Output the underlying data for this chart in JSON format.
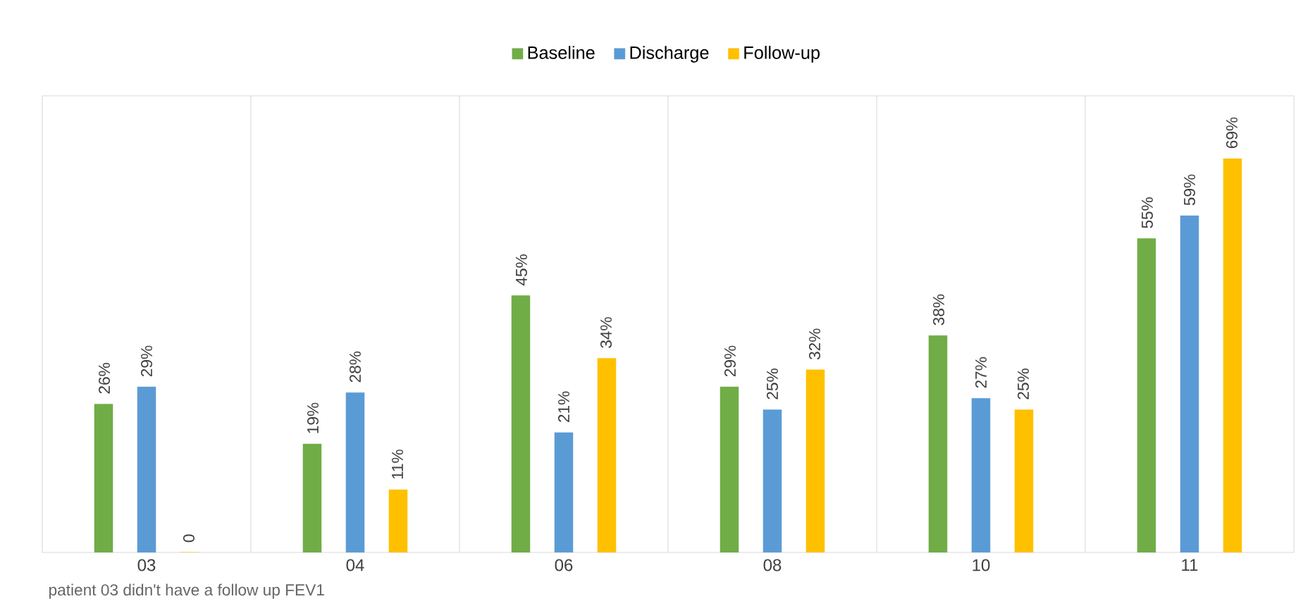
{
  "chart_data": {
    "type": "bar",
    "categories": [
      "03",
      "04",
      "06",
      "08",
      "10",
      "11"
    ],
    "series": [
      {
        "name": "Baseline",
        "color": "#70ad47",
        "values": [
          26,
          19,
          45,
          29,
          38,
          55
        ],
        "value_labels": [
          "26%",
          "19%",
          "45%",
          "29%",
          "38%",
          "55%"
        ]
      },
      {
        "name": "Discharge",
        "color": "#5b9bd5",
        "values": [
          29,
          28,
          21,
          25,
          27,
          59
        ],
        "value_labels": [
          "29%",
          "28%",
          "21%",
          "25%",
          "27%",
          "59%"
        ]
      },
      {
        "name": "Follow-up",
        "color": "#ffc000",
        "values": [
          0,
          11,
          34,
          32,
          25,
          69
        ],
        "value_labels": [
          "0",
          "11%",
          "34%",
          "32%",
          "25%",
          "69%"
        ]
      }
    ],
    "ylim": [
      0,
      80
    ],
    "tick_labels": "x",
    "grid": "x",
    "legend": "top",
    "annotations": [
      "patient 03 didn't have a follow up FEV1"
    ]
  }
}
